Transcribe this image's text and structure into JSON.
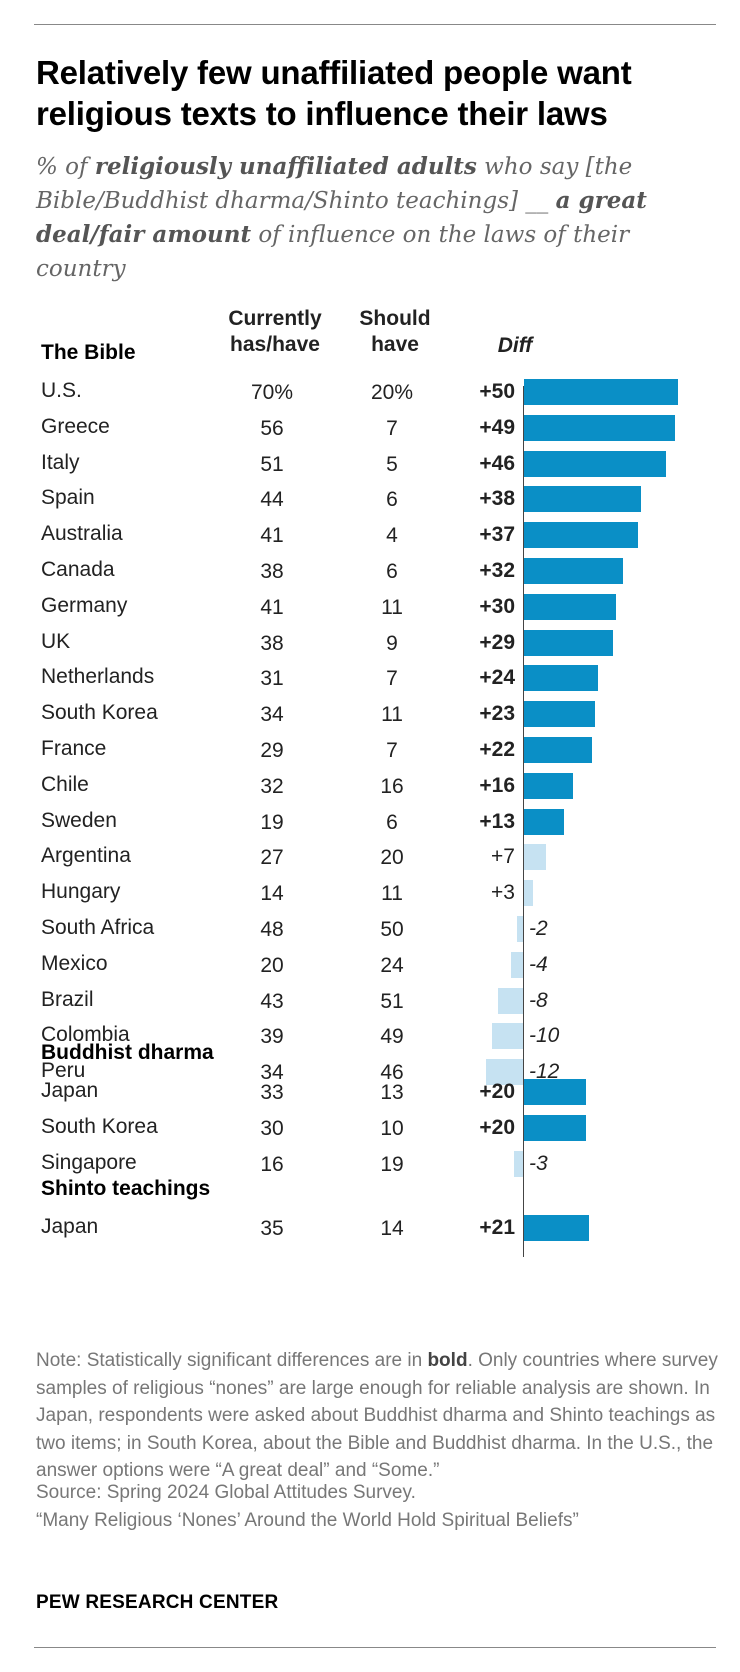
{
  "title": "Relatively few unaffiliated people want religious texts to influence their laws",
  "subtitle": {
    "part1": "% of ",
    "bold1": "religiously unaffiliated adults",
    "part2": " who say [the Bible/Buddhist dharma/Shinto teachings] __ ",
    "bold2": "a great deal/fair amount",
    "part3": " of influence on the laws of their country"
  },
  "columns": {
    "current_line1": "Currently",
    "current_line2": "has/have",
    "should_line1": "Should",
    "should_line2": "have",
    "diff": "Diff"
  },
  "colors": {
    "significant": "#0a8fc6",
    "not_significant": "#c6e2f2"
  },
  "chart_data": {
    "type": "bar",
    "orientation": "horizontal",
    "title": "Relatively few unaffiliated people want religious texts to influence their laws",
    "value_field": "diff",
    "sections": [
      {
        "label": "The Bible",
        "rows": [
          {
            "country": "U.S.",
            "current": "70%",
            "should": "20%",
            "diff": 50,
            "diff_label": "+50",
            "significant": true
          },
          {
            "country": "Greece",
            "current": "56",
            "should": "7",
            "diff": 49,
            "diff_label": "+49",
            "significant": true
          },
          {
            "country": "Italy",
            "current": "51",
            "should": "5",
            "diff": 46,
            "diff_label": "+46",
            "significant": true
          },
          {
            "country": "Spain",
            "current": "44",
            "should": "6",
            "diff": 38,
            "diff_label": "+38",
            "significant": true
          },
          {
            "country": "Australia",
            "current": "41",
            "should": "4",
            "diff": 37,
            "diff_label": "+37",
            "significant": true
          },
          {
            "country": "Canada",
            "current": "38",
            "should": "6",
            "diff": 32,
            "diff_label": "+32",
            "significant": true
          },
          {
            "country": "Germany",
            "current": "41",
            "should": "11",
            "diff": 30,
            "diff_label": "+30",
            "significant": true
          },
          {
            "country": "UK",
            "current": "38",
            "should": "9",
            "diff": 29,
            "diff_label": "+29",
            "significant": true
          },
          {
            "country": "Netherlands",
            "current": "31",
            "should": "7",
            "diff": 24,
            "diff_label": "+24",
            "significant": true
          },
          {
            "country": "South Korea",
            "current": "34",
            "should": "11",
            "diff": 23,
            "diff_label": "+23",
            "significant": true
          },
          {
            "country": "France",
            "current": "29",
            "should": "7",
            "diff": 22,
            "diff_label": "+22",
            "significant": true
          },
          {
            "country": "Chile",
            "current": "32",
            "should": "16",
            "diff": 16,
            "diff_label": "+16",
            "significant": true
          },
          {
            "country": "Sweden",
            "current": "19",
            "should": "6",
            "diff": 13,
            "diff_label": "+13",
            "significant": true
          },
          {
            "country": "Argentina",
            "current": "27",
            "should": "20",
            "diff": 7,
            "diff_label": "+7",
            "significant": false
          },
          {
            "country": "Hungary",
            "current": "14",
            "should": "11",
            "diff": 3,
            "diff_label": "+3",
            "significant": false
          },
          {
            "country": "South Africa",
            "current": "48",
            "should": "50",
            "diff": -2,
            "diff_label": "-2",
            "significant": false
          },
          {
            "country": "Mexico",
            "current": "20",
            "should": "24",
            "diff": -4,
            "diff_label": "-4",
            "significant": false
          },
          {
            "country": "Brazil",
            "current": "43",
            "should": "51",
            "diff": -8,
            "diff_label": "-8",
            "significant": false
          },
          {
            "country": "Colombia",
            "current": "39",
            "should": "49",
            "diff": -10,
            "diff_label": "-10",
            "significant": false
          },
          {
            "country": "Peru",
            "current": "34",
            "should": "46",
            "diff": -12,
            "diff_label": "-12",
            "significant": false
          }
        ]
      },
      {
        "label": "Buddhist dharma",
        "rows": [
          {
            "country": "Japan",
            "current": "33",
            "should": "13",
            "diff": 20,
            "diff_label": "+20",
            "significant": true
          },
          {
            "country": "South Korea",
            "current": "30",
            "should": "10",
            "diff": 20,
            "diff_label": "+20",
            "significant": true
          },
          {
            "country": "Singapore",
            "current": "16",
            "should": "19",
            "diff": -3,
            "diff_label": "-3",
            "significant": false
          }
        ]
      },
      {
        "label": "Shinto teachings",
        "rows": [
          {
            "country": "Japan",
            "current": "35",
            "should": "14",
            "diff": 21,
            "diff_label": "+21",
            "significant": true
          }
        ]
      }
    ]
  },
  "note": {
    "part1": "Note: Statistically significant differences are in ",
    "bold": "bold",
    "part2": ". Only countries where survey samples of religious “nones” are large enough for reliable analysis are shown. In Japan, respondents were asked about Buddhist dharma and Shinto teachings as two items; in South Korea, about the Bible and Buddhist dharma. In the U.S., the answer options were “A great deal” and “Some.”"
  },
  "source": "Source: Spring 2024 Global Attitudes Survey.",
  "report": "“Many Religious ‘Nones’ Around the World Hold Spiritual Beliefs”",
  "brand": "PEW RESEARCH CENTER"
}
